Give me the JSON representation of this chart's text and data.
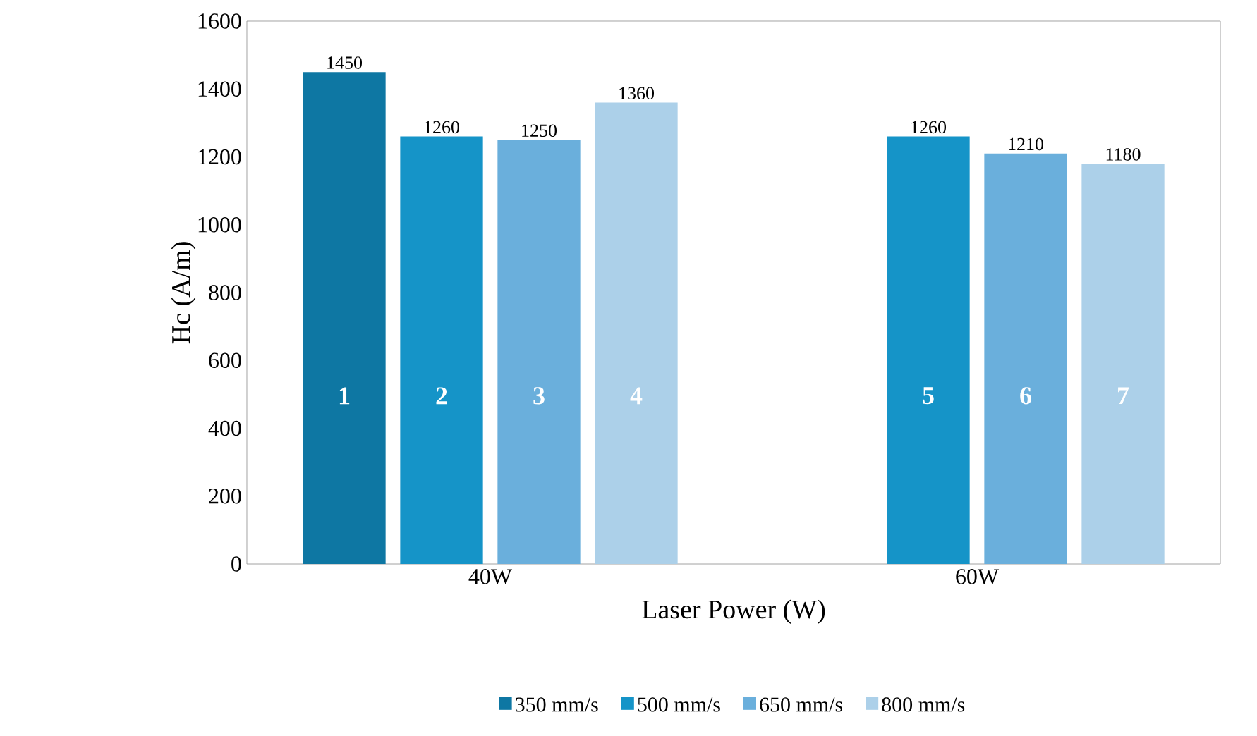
{
  "chart_data": {
    "type": "bar",
    "xlabel": "Laser Power (W)",
    "ylabel": "Hc (A/m)",
    "categories": [
      "40W",
      "60W"
    ],
    "series": [
      {
        "name": "350 mm/s",
        "color": "#0e77a3",
        "values": [
          1450,
          null
        ]
      },
      {
        "name": "500 mm/s",
        "color": "#1594c8",
        "values": [
          1260,
          1260
        ]
      },
      {
        "name": "650 mm/s",
        "color": "#6aafdc",
        "values": [
          1250,
          1210
        ]
      },
      {
        "name": "800 mm/s",
        "color": "#acd0e9",
        "values": [
          1360,
          1180
        ]
      }
    ],
    "ylim": [
      0,
      1600
    ],
    "yticks": [
      0,
      200,
      400,
      600,
      800,
      1000,
      1200,
      1400,
      1600
    ],
    "data_labels": true,
    "legend": "bottom",
    "grid": false,
    "annotations": [
      "1",
      "2",
      "3",
      "4",
      "5",
      "6",
      "7"
    ]
  }
}
